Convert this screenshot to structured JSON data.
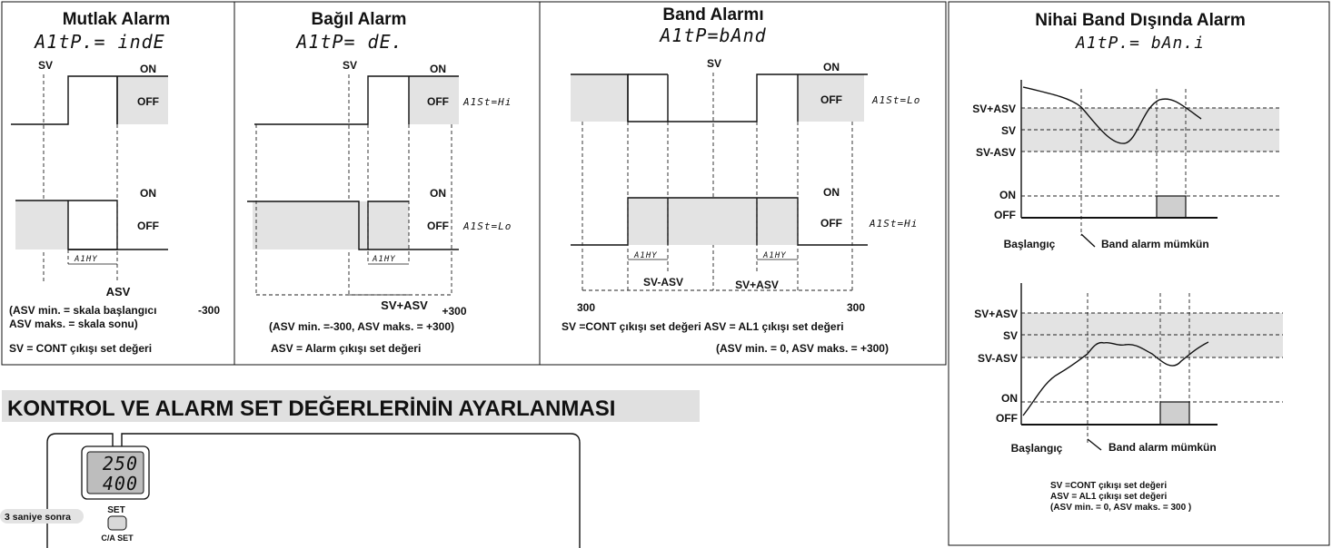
{
  "panels": {
    "mutlak": {
      "title": "Mutlak Alarm",
      "code": "A1tP.= indE",
      "sv": "SV",
      "on_top": "ON",
      "off_top": "OFF",
      "on_bottom": "ON",
      "off_bottom": "OFF",
      "hys": "A1HY",
      "asv": "ASV",
      "note1": "(ASV min.  = skala başlangıcı",
      "note1_val": "-300",
      "note2": " ASV maks. = skala sonu)",
      "note3": "SV   = CONT çıkışı set değeri"
    },
    "bagil": {
      "title": "Bağıl Alarm",
      "code": "A1tP= dE.",
      "sv": "SV",
      "on_top": "ON",
      "off_top": "OFF",
      "st_top": "A1St=Hi",
      "on_bottom": "ON",
      "off_bottom": "OFF",
      "st_bottom": "A1St=Lo",
      "hys": "A1HY",
      "svasv": "SV+ASV",
      "p300": "+300",
      "note1": "(ASV min.  =-300, ASV maks. = +300)",
      "note2": "ASV = Alarm çıkışı set değeri"
    },
    "band": {
      "title": "Band Alarmı",
      "code": "A1tP=bAnd",
      "sv": "SV",
      "on_top": "ON",
      "off_top": "OFF",
      "st_top": "A1St=Lo",
      "on_bottom": "ON",
      "off_bottom": "OFF",
      "st_bottom": "A1St=Hi",
      "hys_left": "A1HY",
      "hys_right": "A1HY",
      "sv_minus": "SV-ASV",
      "sv_plus": "SV+ASV",
      "left300": "300",
      "right300": "300",
      "note1": "SV =CONT çıkışı set değeri      ASV = AL1 çıkışı set değeri",
      "note2": "(ASV min. = 0,  ASV maks. = +300)"
    },
    "nihai": {
      "title": "Nihai Band Dışında Alarm",
      "code": "A1tP.= bAn.i",
      "svasv": "SV+ASV",
      "sv": "SV",
      "svmasv": "SV-ASV",
      "on": "ON",
      "off": "OFF",
      "start": "Başlangıç",
      "enabled": "Band alarm mümkün",
      "svasv2": "SV+ASV",
      "sv2": "SV",
      "svmasv2": "SV-ASV",
      "on2": "ON",
      "off2": "OFF",
      "start2": "Başlangıç",
      "enabled2": "Band alarm mümkün",
      "note1": "SV =CONT çıkışı set değeri",
      "note2": " ASV = AL1 çıkışı set değeri",
      "note3": "(ASV min. = 0,  ASV maks. = 300 )"
    }
  },
  "section_title": "KONTROL VE ALARM SET DEĞERLERİNİN AYARLANMASI",
  "device": {
    "display_top": "250",
    "display_bottom": "400",
    "after_label": "3 saniye sonra",
    "set_label": "SET",
    "ca_set_label": "C/A SET"
  }
}
